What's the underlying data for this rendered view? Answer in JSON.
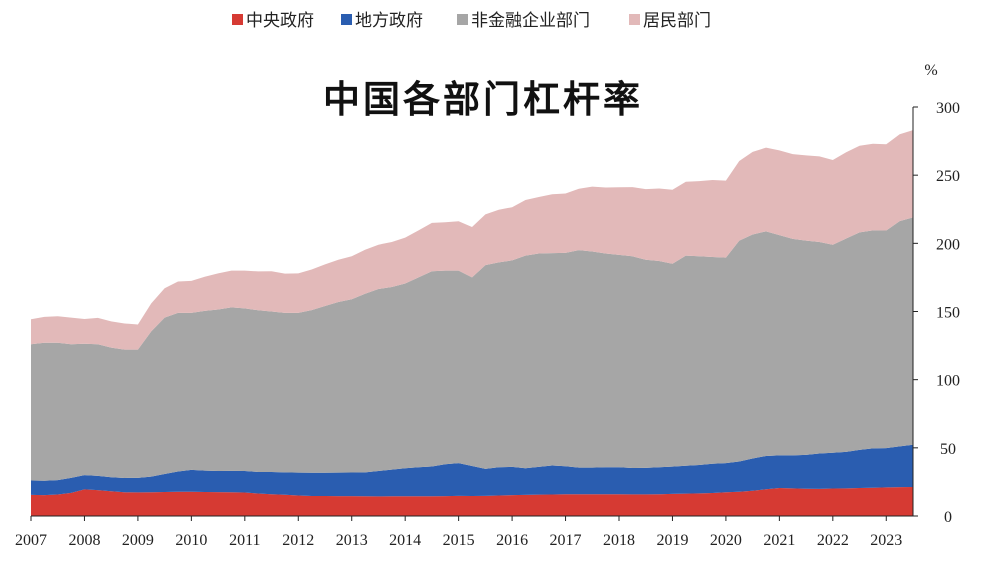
{
  "chart_data": {
    "type": "area",
    "stacked": true,
    "title": "中国各部门杠杆率",
    "ylabel": "%",
    "ylim": [
      0,
      300
    ],
    "yticks": [
      0,
      50,
      100,
      150,
      200,
      250,
      300
    ],
    "xlim": [
      2007,
      2023.5
    ],
    "xticks": [
      2007,
      2008,
      2009,
      2010,
      2011,
      2012,
      2013,
      2014,
      2015,
      2016,
      2017,
      2018,
      2019,
      2020,
      2021,
      2022,
      2023
    ],
    "legend_position": "top",
    "x": [
      2007.0,
      2007.25,
      2007.5,
      2007.75,
      2008.0,
      2008.25,
      2008.5,
      2008.75,
      2009.0,
      2009.25,
      2009.5,
      2009.75,
      2010.0,
      2010.25,
      2010.5,
      2010.75,
      2011.0,
      2011.25,
      2011.5,
      2011.75,
      2012.0,
      2012.25,
      2012.5,
      2012.75,
      2013.0,
      2013.25,
      2013.5,
      2013.75,
      2014.0,
      2014.25,
      2014.5,
      2014.75,
      2015.0,
      2015.25,
      2015.5,
      2015.75,
      2016.0,
      2016.25,
      2016.5,
      2016.75,
      2017.0,
      2017.25,
      2017.5,
      2017.75,
      2018.0,
      2018.25,
      2018.5,
      2018.75,
      2019.0,
      2019.25,
      2019.5,
      2019.75,
      2020.0,
      2020.25,
      2020.5,
      2020.75,
      2021.0,
      2021.25,
      2021.5,
      2021.75,
      2022.0,
      2022.25,
      2022.5,
      2022.75,
      2023.0,
      2023.25,
      2023.5
    ],
    "series": [
      {
        "name": "中央政府",
        "color": "#d63a33",
        "values": [
          15.5,
          15.3,
          15.8,
          17.0,
          19.5,
          19.0,
          18.2,
          17.4,
          17.3,
          17.4,
          17.6,
          17.8,
          17.8,
          17.6,
          17.5,
          17.4,
          17.2,
          16.5,
          16.0,
          15.6,
          15.0,
          14.7,
          14.7,
          14.6,
          14.6,
          14.5,
          14.4,
          14.5,
          14.5,
          14.5,
          14.5,
          14.6,
          14.8,
          14.7,
          14.8,
          15.0,
          15.3,
          15.5,
          15.7,
          15.8,
          16.0,
          16.0,
          16.0,
          16.0,
          16.0,
          15.9,
          15.9,
          16.0,
          16.2,
          16.4,
          16.6,
          16.9,
          17.4,
          17.8,
          18.5,
          19.6,
          20.5,
          20.3,
          20.0,
          19.9,
          20.2,
          20.3,
          20.5,
          20.7,
          21.0,
          21.2,
          21.3
        ]
      },
      {
        "name": "地方政府",
        "color": "#2a5db0",
        "values": [
          10.5,
          10.6,
          10.5,
          11.0,
          10.5,
          10.4,
          10.2,
          10.5,
          10.7,
          11.5,
          13.2,
          14.8,
          16.0,
          15.7,
          15.5,
          15.7,
          15.8,
          15.8,
          16.3,
          16.4,
          16.8,
          17.0,
          17.0,
          17.2,
          17.3,
          17.5,
          18.6,
          19.5,
          20.5,
          21.3,
          21.8,
          23.4,
          24.0,
          22.0,
          19.8,
          20.8,
          20.7,
          19.5,
          20.3,
          21.2,
          20.5,
          19.5,
          19.5,
          19.8,
          19.8,
          19.3,
          19.4,
          19.8,
          20.0,
          20.5,
          20.8,
          21.4,
          21.4,
          22.2,
          23.7,
          24.4,
          24.0,
          24.2,
          24.8,
          25.9,
          26.2,
          26.7,
          28.0,
          28.9,
          28.8,
          29.9,
          31.0
        ]
      },
      {
        "name": "非金融企业部门",
        "color": "#a6a6a6",
        "values": [
          100.0,
          101.2,
          100.8,
          98.0,
          96.3,
          96.6,
          95.1,
          94.1,
          94.0,
          106.5,
          114.7,
          116.4,
          115.2,
          117.2,
          118.5,
          119.9,
          119.3,
          118.6,
          117.7,
          117.0,
          117.2,
          119.3,
          122.3,
          125.2,
          127.1,
          131.0,
          133.5,
          134.0,
          135.5,
          139.2,
          143.2,
          142.0,
          141.2,
          138.3,
          149.4,
          150.2,
          151.5,
          156.0,
          156.5,
          155.8,
          156.5,
          159.5,
          158.5,
          156.7,
          155.7,
          155.3,
          152.7,
          151.2,
          148.8,
          154.1,
          153.1,
          151.7,
          150.7,
          162.0,
          164.3,
          164.8,
          161.5,
          158.8,
          157.2,
          155.2,
          152.6,
          156.5,
          159.5,
          159.9,
          159.6,
          165.2,
          166.7
        ]
      },
      {
        "name": "居民部门",
        "color": "#e2b9b9",
        "values": [
          18.3,
          19.0,
          19.4,
          19.5,
          18.2,
          19.3,
          19.3,
          19.2,
          18.5,
          20.6,
          21.6,
          23.0,
          23.5,
          25.0,
          26.5,
          27.0,
          27.7,
          28.5,
          29.5,
          28.8,
          29.0,
          29.8,
          30.6,
          31.0,
          31.5,
          32.3,
          32.5,
          33.0,
          33.7,
          34.5,
          35.5,
          35.5,
          36.2,
          37.0,
          37.2,
          38.6,
          39.0,
          40.8,
          41.5,
          43.2,
          43.6,
          45.0,
          47.6,
          48.5,
          49.6,
          50.7,
          51.8,
          53.2,
          54.3,
          54.2,
          55.1,
          56.5,
          56.5,
          58.4,
          60.6,
          61.4,
          62.2,
          62.1,
          62.5,
          62.8,
          62.1,
          63.3,
          63.6,
          63.5,
          63.3,
          63.7,
          64.0
        ]
      }
    ]
  }
}
